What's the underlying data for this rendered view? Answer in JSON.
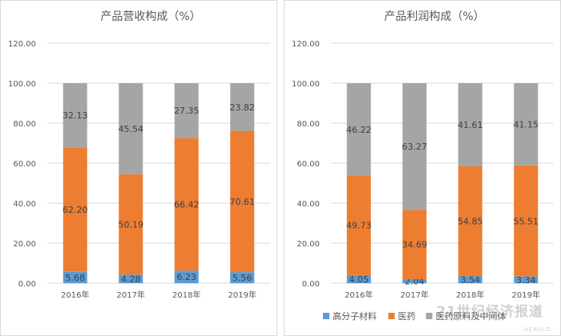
{
  "chart_data": [
    {
      "type": "bar",
      "stacked": true,
      "title": "产品营收构成（%）",
      "categories": [
        "2016年",
        "2017年",
        "2018年",
        "2019年"
      ],
      "series": [
        {
          "name": "高分子材料",
          "values": [
            5.68,
            4.28,
            6.23,
            5.56
          ],
          "labels": [
            "5.68",
            "4.28",
            "6.23",
            "5.56"
          ],
          "color": "#5b9bd5"
        },
        {
          "name": "医药",
          "values": [
            62.2,
            50.19,
            66.42,
            70.61
          ],
          "labels": [
            "62.20",
            "50.19",
            "66.42",
            "70.61"
          ],
          "color": "#ed7d31"
        },
        {
          "name": "医药原料及中间体",
          "values": [
            32.13,
            45.54,
            27.35,
            23.82
          ],
          "labels": [
            "32.13",
            "45.54",
            "27.35",
            "23.82"
          ],
          "color": "#a5a5a5"
        }
      ],
      "yticks": [
        "0.00",
        "20.00",
        "40.00",
        "60.00",
        "80.00",
        "100.00",
        "120.00"
      ],
      "ylim": [
        0,
        120
      ],
      "grid": true,
      "legend": "none"
    },
    {
      "type": "bar",
      "stacked": true,
      "title": "产品利润构成（%）",
      "categories": [
        "2016年",
        "2017年",
        "2018年",
        "2019年"
      ],
      "series": [
        {
          "name": "高分子材料",
          "values": [
            4.05,
            2.04,
            3.54,
            3.34
          ],
          "labels": [
            "4.05",
            "2.04",
            "3.54",
            "3.34"
          ],
          "color": "#5b9bd5"
        },
        {
          "name": "医药",
          "values": [
            49.73,
            34.69,
            54.85,
            55.51
          ],
          "labels": [
            "49.73",
            "34.69",
            "54.85",
            "55.51"
          ],
          "color": "#ed7d31"
        },
        {
          "name": "医药原料及中间体",
          "values": [
            46.22,
            63.27,
            41.61,
            41.15
          ],
          "labels": [
            "46.22",
            "63.27",
            "41.61",
            "41.15"
          ],
          "color": "#a5a5a5"
        }
      ],
      "yticks": [
        "0.00",
        "20.00",
        "40.00",
        "60.00",
        "80.00",
        "100.00",
        "120.00"
      ],
      "ylim": [
        0,
        120
      ],
      "grid": true,
      "legend": "bottom"
    }
  ],
  "watermark": {
    "text": "21世纪经济报道",
    "sub": "HERALD"
  }
}
